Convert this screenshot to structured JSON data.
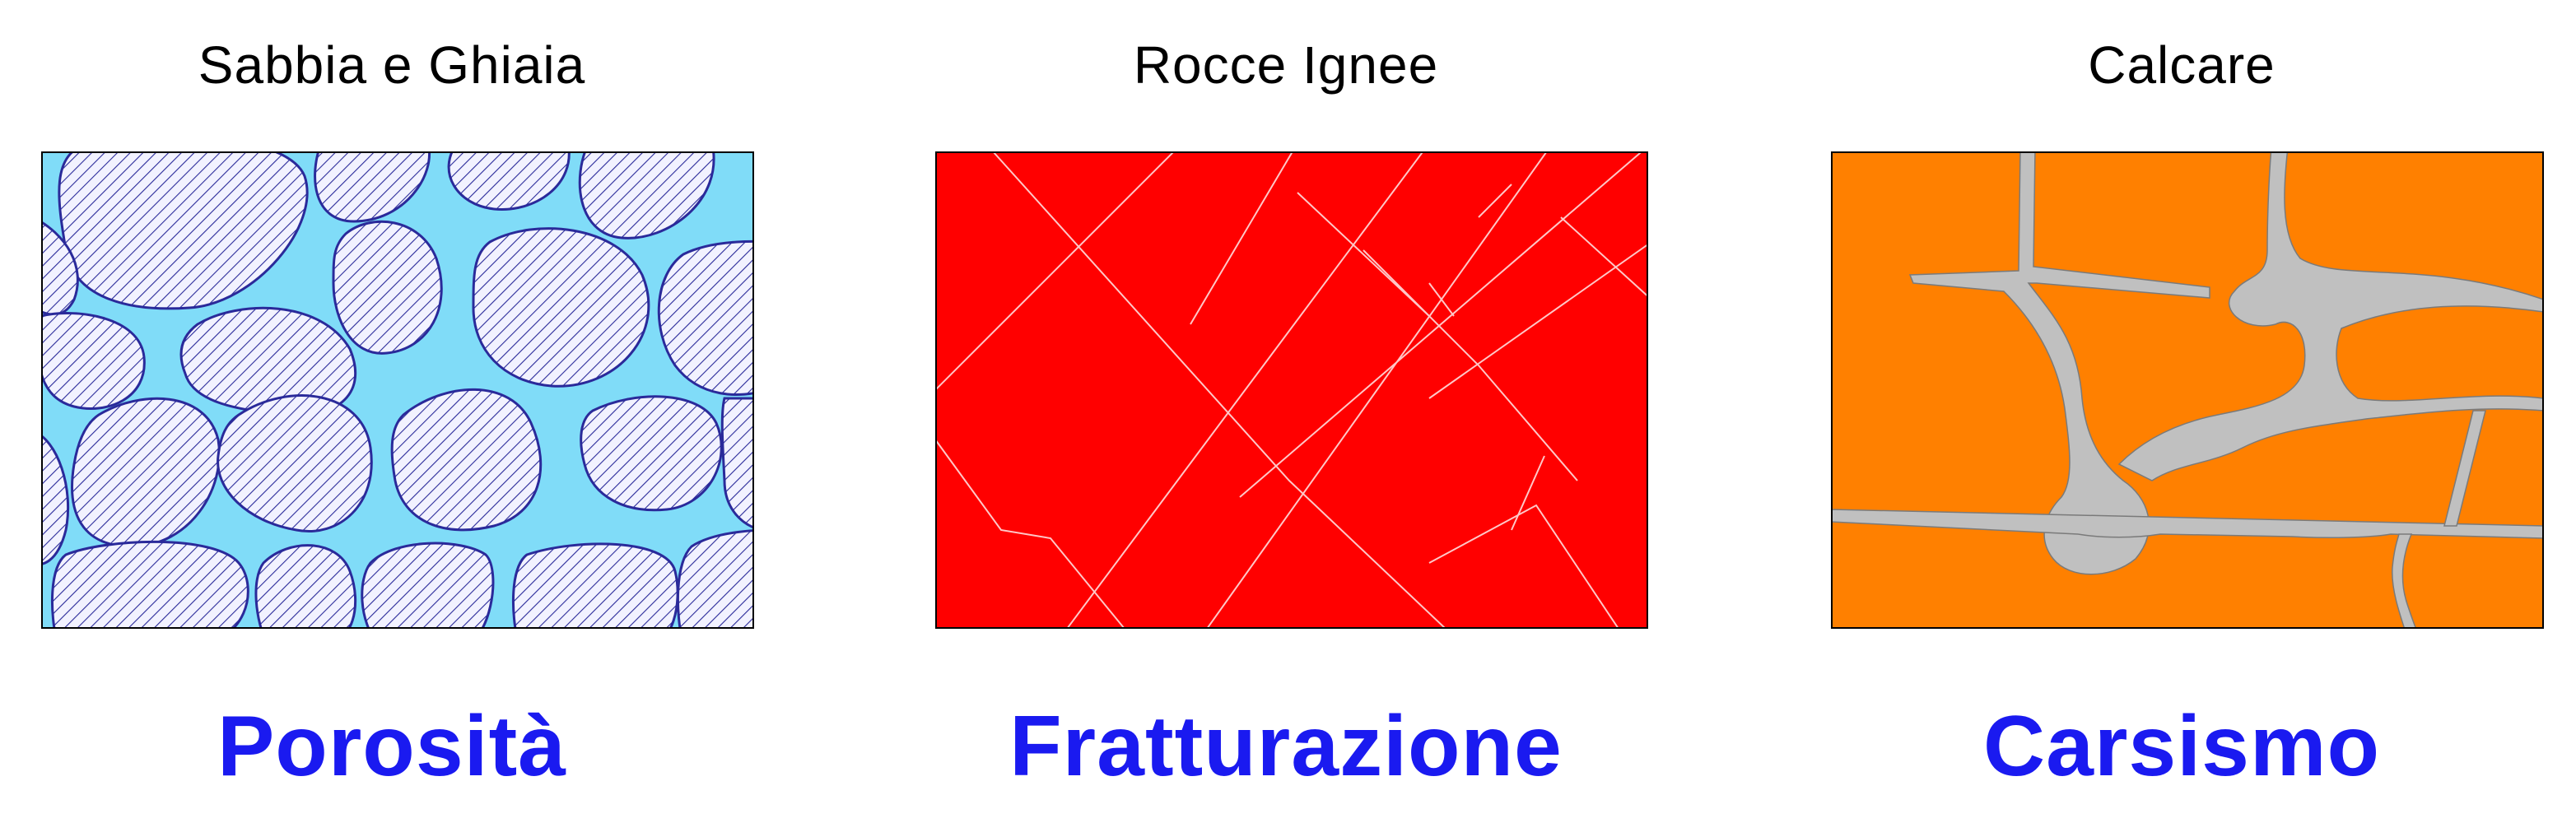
{
  "panels": [
    {
      "title": "Sabbia e Ghiaia",
      "caption": "Porosità",
      "fill_color": "#80dcf8",
      "grain_hatch_color": "#2a2a9a",
      "grain_fill_color": "#f2f2ff"
    },
    {
      "title": "Rocce Ignee",
      "caption": "Fratturazione",
      "fill_color": "#ff0000",
      "fracture_color": "#ffc8c8"
    },
    {
      "title": "Calcare",
      "caption": "Carsismo",
      "fill_color": "#ff8000",
      "conduit_color": "#c0c0c0"
    }
  ],
  "caption_color": "#1a1af0"
}
